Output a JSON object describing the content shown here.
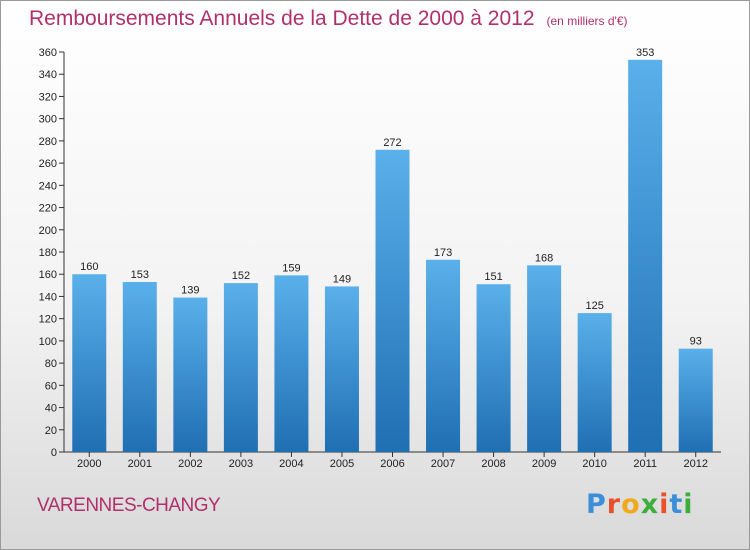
{
  "title": "Remboursements Annuels de la Dette de 2000 à 2012",
  "unit": "(en milliers d'€)",
  "commune": "VARENNES-CHANGY",
  "logo": {
    "text": "Proxiti",
    "letters": [
      "P",
      "r",
      "o",
      "x",
      "i",
      "t",
      "i"
    ],
    "colors": [
      "#3a8fd8",
      "#e8502a",
      "#f1a81c",
      "#3cae3c",
      "#e8502a",
      "#3a8fd8",
      "#3cae3c"
    ]
  },
  "colors": {
    "bar_top": "#5ab0ea",
    "bar_bottom": "#1f6fb3",
    "title": "#b0306c"
  },
  "chart_data": {
    "type": "bar",
    "categories": [
      "2000",
      "2001",
      "2002",
      "2003",
      "2004",
      "2005",
      "2006",
      "2007",
      "2008",
      "2009",
      "2010",
      "2011",
      "2012"
    ],
    "values": [
      160,
      153,
      139,
      152,
      159,
      149,
      272,
      173,
      151,
      168,
      125,
      353,
      93
    ],
    "title": "Remboursements Annuels de la Dette de 2000 à 2012",
    "xlabel": "",
    "ylabel": "",
    "ylim": [
      0,
      360
    ],
    "yticks": [
      0,
      20,
      40,
      60,
      80,
      100,
      120,
      140,
      160,
      180,
      200,
      220,
      240,
      260,
      280,
      300,
      320,
      340,
      360
    ],
    "grid": false,
    "data_labels": true
  }
}
